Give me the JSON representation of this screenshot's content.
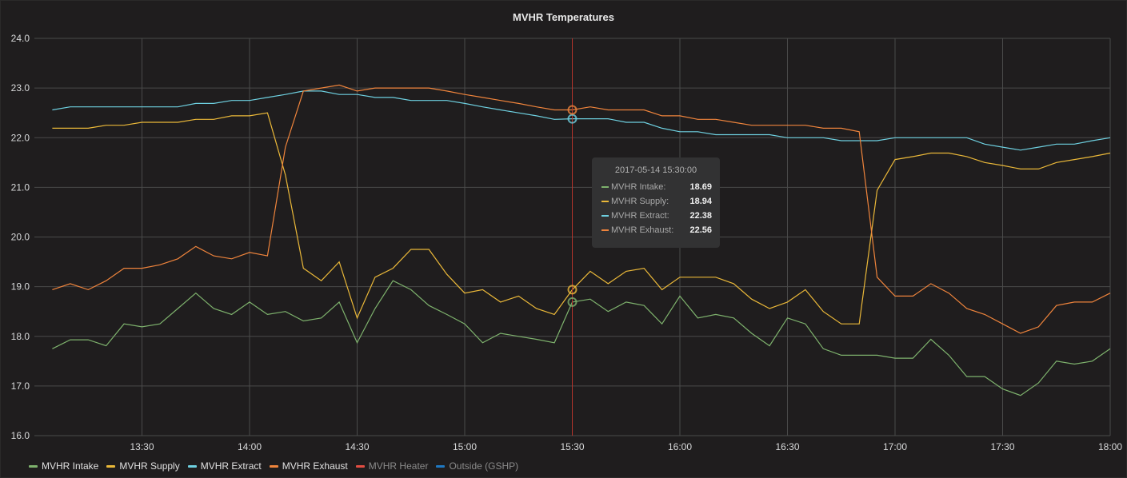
{
  "panel": {
    "title": "MVHR Temperatures"
  },
  "tooltip": {
    "time": "2017-05-14 15:30:00",
    "rows": [
      {
        "label": "MVHR Intake:",
        "value": "18.69",
        "color": "#7eb26d"
      },
      {
        "label": "MVHR Supply:",
        "value": "18.94",
        "color": "#eab839"
      },
      {
        "label": "MVHR Extract:",
        "value": "22.38",
        "color": "#6ed0e0"
      },
      {
        "label": "MVHR Exhaust:",
        "value": "22.56",
        "color": "#ef843c"
      }
    ]
  },
  "legend": [
    {
      "label": "MVHR Intake",
      "color": "#7eb26d",
      "hidden": false
    },
    {
      "label": "MVHR Supply",
      "color": "#eab839",
      "hidden": false
    },
    {
      "label": "MVHR Extract",
      "color": "#6ed0e0",
      "hidden": false
    },
    {
      "label": "MVHR Exhaust",
      "color": "#ef843c",
      "hidden": false
    },
    {
      "label": "MVHR Heater",
      "color": "#e24d42",
      "hidden": true
    },
    {
      "label": "Outside (GSHP)",
      "color": "#1f78c1",
      "hidden": true
    }
  ],
  "chart_data": {
    "type": "line",
    "title": "MVHR Temperatures",
    "x_start": "13:05",
    "x_step_minutes": 5,
    "xlim": [
      "13:00",
      "18:00"
    ],
    "x_ticks": [
      "13:30",
      "14:00",
      "14:30",
      "15:00",
      "15:30",
      "16:00",
      "16:30",
      "17:00",
      "17:30",
      "18:00"
    ],
    "ylim": [
      16,
      24
    ],
    "y_ticks": [
      "16.0",
      "17.0",
      "18.0",
      "19.0",
      "20.0",
      "21.0",
      "22.0",
      "23.0",
      "24.0"
    ],
    "grid": true,
    "legend_position": "bottom-left",
    "crosshair": "15:30",
    "series": [
      {
        "name": "MVHR Intake",
        "color": "#7eb26d",
        "values": [
          17.75,
          17.93,
          17.93,
          17.81,
          18.25,
          18.19,
          18.25,
          18.56,
          18.87,
          18.56,
          18.44,
          18.69,
          18.44,
          18.5,
          18.31,
          18.37,
          18.69,
          17.87,
          18.56,
          19.12,
          18.94,
          18.62,
          18.44,
          18.25,
          17.87,
          18.06,
          18.0,
          17.94,
          17.87,
          18.69,
          18.75,
          18.5,
          18.69,
          18.62,
          18.25,
          18.81,
          18.37,
          18.44,
          18.37,
          18.06,
          17.81,
          18.37,
          18.25,
          17.75,
          17.62,
          17.62,
          17.62,
          17.56,
          17.56,
          17.94,
          17.62,
          17.19,
          17.19,
          16.94,
          16.81,
          17.06,
          17.5,
          17.44,
          17.5,
          17.75
        ]
      },
      {
        "name": "MVHR Supply",
        "color": "#eab839",
        "values": [
          22.19,
          22.19,
          22.19,
          22.25,
          22.25,
          22.31,
          22.31,
          22.31,
          22.37,
          22.37,
          22.44,
          22.44,
          22.5,
          21.25,
          19.37,
          19.12,
          19.5,
          18.37,
          19.19,
          19.37,
          19.75,
          19.75,
          19.25,
          18.87,
          18.94,
          18.69,
          18.81,
          18.56,
          18.44,
          18.94,
          19.31,
          19.06,
          19.31,
          19.37,
          18.94,
          19.19,
          19.19,
          19.19,
          19.06,
          18.75,
          18.56,
          18.69,
          18.94,
          18.5,
          18.25,
          18.25,
          20.94,
          21.56,
          21.62,
          21.69,
          21.69,
          21.62,
          21.5,
          21.44,
          21.37,
          21.37,
          21.5,
          21.56,
          21.62,
          21.69
        ]
      },
      {
        "name": "MVHR Extract",
        "color": "#6ed0e0",
        "values": [
          22.56,
          22.62,
          22.62,
          22.62,
          22.62,
          22.62,
          22.62,
          22.62,
          22.69,
          22.69,
          22.75,
          22.75,
          22.81,
          22.87,
          22.94,
          22.94,
          22.87,
          22.87,
          22.81,
          22.81,
          22.75,
          22.75,
          22.75,
          22.69,
          22.62,
          22.56,
          22.5,
          22.44,
          22.37,
          22.38,
          22.38,
          22.38,
          22.31,
          22.31,
          22.19,
          22.12,
          22.12,
          22.06,
          22.06,
          22.06,
          22.06,
          22.0,
          22.0,
          22.0,
          21.94,
          21.94,
          21.94,
          22.0,
          22.0,
          22.0,
          22.0,
          22.0,
          21.87,
          21.81,
          21.75,
          21.81,
          21.87,
          21.87,
          21.94,
          22.0
        ]
      },
      {
        "name": "MVHR Exhaust",
        "color": "#ef843c",
        "values": [
          18.94,
          19.06,
          18.94,
          19.12,
          19.37,
          19.37,
          19.44,
          19.56,
          19.81,
          19.62,
          19.56,
          19.69,
          19.62,
          21.81,
          22.94,
          23.0,
          23.06,
          22.94,
          23.0,
          23.0,
          23.0,
          23.0,
          22.94,
          22.87,
          22.81,
          22.75,
          22.69,
          22.62,
          22.56,
          22.56,
          22.62,
          22.56,
          22.56,
          22.56,
          22.44,
          22.44,
          22.37,
          22.37,
          22.31,
          22.25,
          22.25,
          22.25,
          22.25,
          22.19,
          22.19,
          22.12,
          19.19,
          18.81,
          18.81,
          19.06,
          18.87,
          18.56,
          18.44,
          18.25,
          18.06,
          18.19,
          18.62,
          18.69,
          18.69,
          18.87
        ]
      }
    ]
  }
}
